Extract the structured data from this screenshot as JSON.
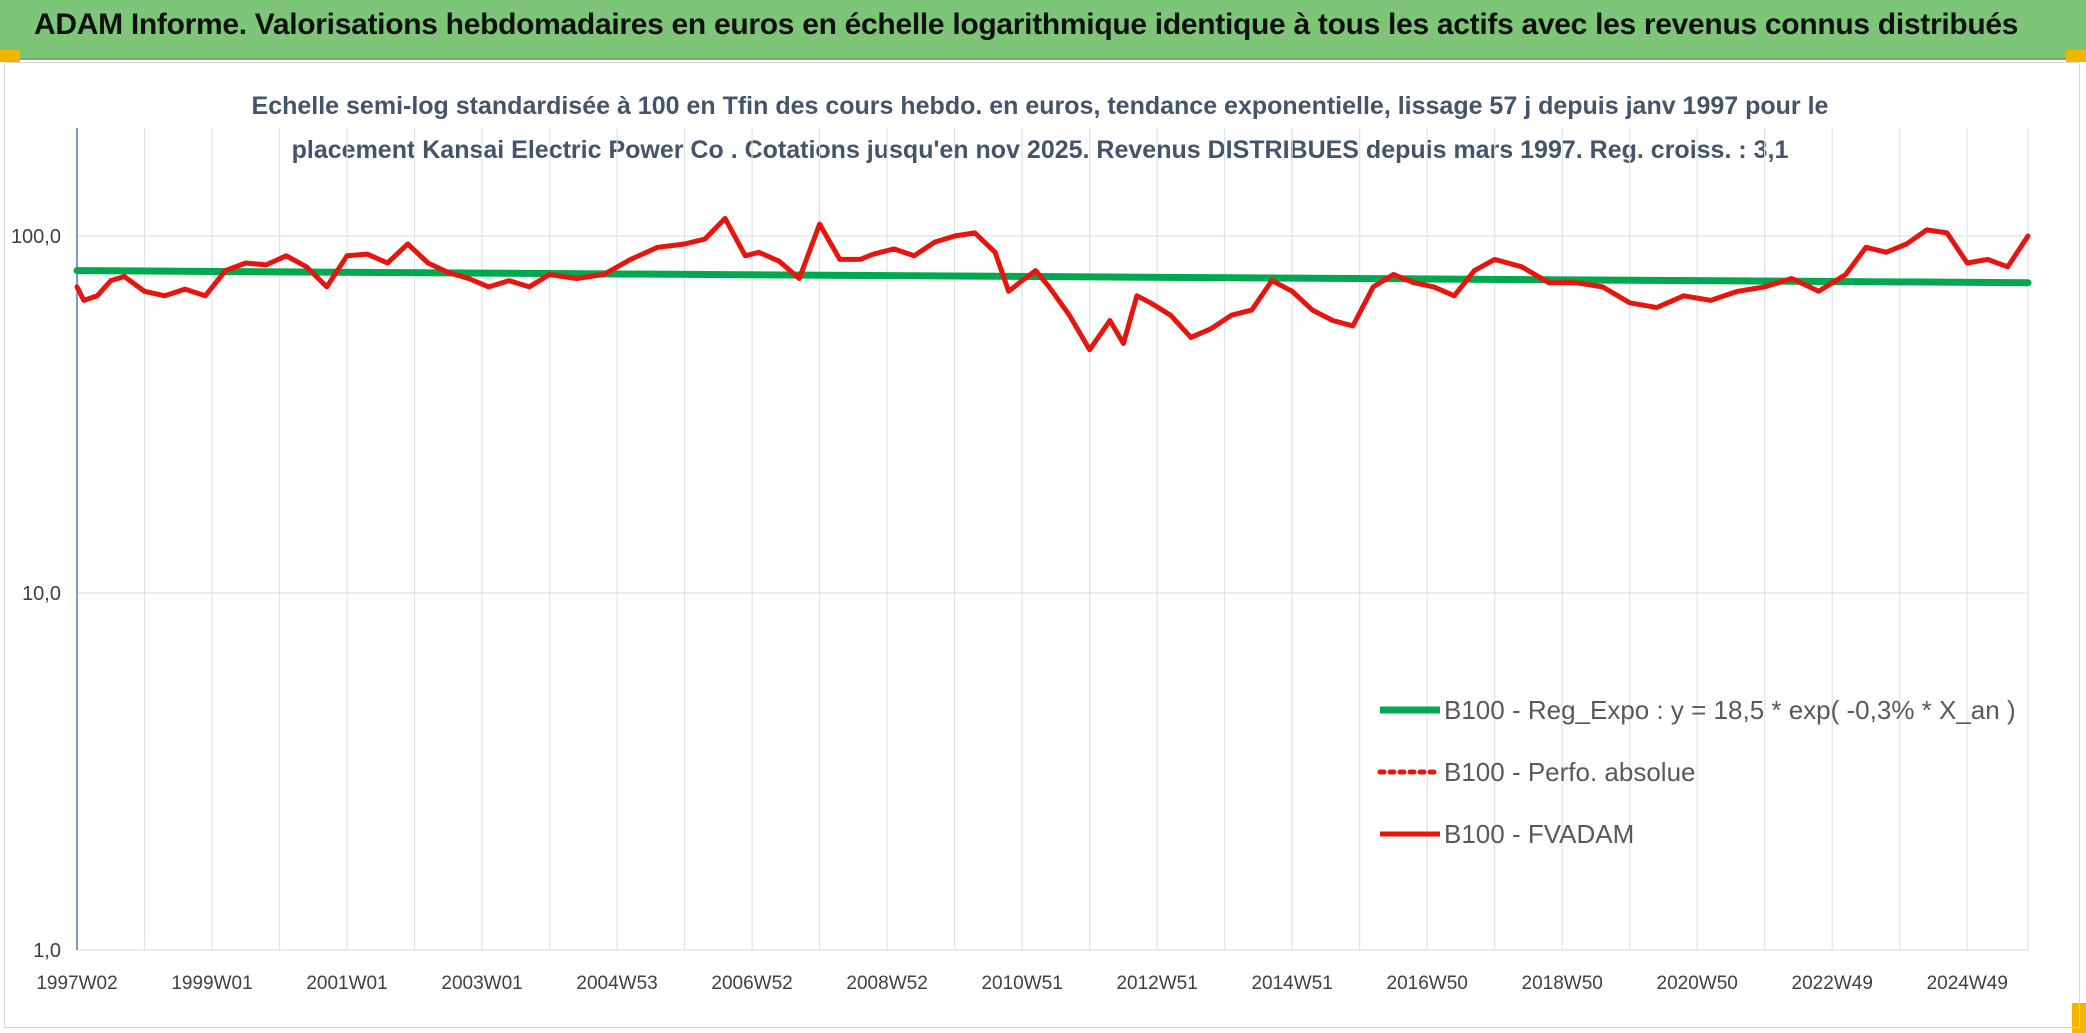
{
  "header": {
    "title": "ADAM Informe. Valorisations hebdomadaires en euros en échelle logarithmique identique à tous les actifs avec les revenus connus distribués"
  },
  "colors": {
    "header_bg": "#7dc678",
    "corner_accent": "#f2b600",
    "trend": "#00a84f",
    "fvadam": "#e8140e",
    "grid": "#dde3ea",
    "y_axis": "#4a7ec0"
  },
  "chart_data": {
    "type": "line",
    "title_lines": [
      "Echelle semi-log standardisée à 100 en Tfin des cours hebdo. en euros, tendance exponentielle, lissage 57 j depuis janv 1997 pour le",
      "placement Kansai Electric Power Co . Cotations jusqu'en nov 2025. Revenus DISTRIBUES depuis mars 1997. Reg. croiss. : 3,1"
    ],
    "y_scale": "log",
    "ylim": [
      1,
      200
    ],
    "y_ticks": [
      {
        "value": 1,
        "label": "1,0"
      },
      {
        "value": 10,
        "label": "10,0"
      },
      {
        "value": 100,
        "label": "100,0"
      }
    ],
    "xlim": [
      1997.0,
      2025.9
    ],
    "x_ticks": [
      {
        "value": 1997.0,
        "label": "1997W02"
      },
      {
        "value": 1999.0,
        "label": "1999W01"
      },
      {
        "value": 2001.0,
        "label": "2001W01"
      },
      {
        "value": 2003.0,
        "label": "2003W01"
      },
      {
        "value": 2005.0,
        "label": "2004W53"
      },
      {
        "value": 2007.0,
        "label": "2006W52"
      },
      {
        "value": 2009.0,
        "label": "2008W52"
      },
      {
        "value": 2011.0,
        "label": "2010W51"
      },
      {
        "value": 2013.0,
        "label": "2012W51"
      },
      {
        "value": 2015.0,
        "label": "2014W51"
      },
      {
        "value": 2017.0,
        "label": "2016W50"
      },
      {
        "value": 2019.0,
        "label": "2018W50"
      },
      {
        "value": 2021.0,
        "label": "2020W50"
      },
      {
        "value": 2023.0,
        "label": "2022W49"
      },
      {
        "value": 2025.0,
        "label": "2024W49"
      }
    ],
    "x_grid_values": [
      1997.0,
      1998.0,
      1999.0,
      2000.0,
      2001.0,
      2002.0,
      2003.0,
      2004.0,
      2005.0,
      2006.0,
      2007.0,
      2008.0,
      2009.0,
      2010.0,
      2011.0,
      2012.0,
      2013.0,
      2014.0,
      2015.0,
      2016.0,
      2017.0,
      2018.0,
      2019.0,
      2020.0,
      2021.0,
      2022.0,
      2023.0,
      2024.0,
      2025.0,
      2025.9
    ],
    "legend": {
      "placement": "right-lower-middle",
      "entries": [
        {
          "label": "B100 - Reg_Expo : y = 18,5 * exp( -0,3% *  X_an )",
          "color": "#00a84f",
          "style": "solid-thick"
        },
        {
          "label": "B100 - Perfo. absolue",
          "color": "#e8140e",
          "style": "dotted"
        },
        {
          "label": "B100 - FVADAM",
          "color": "#e8140e",
          "style": "solid"
        }
      ]
    },
    "series": [
      {
        "name": "B100 - Reg_Expo : y = 18,5 * exp( -0,3% *  X_an )",
        "color": "#00a84f",
        "x": [
          1997.0,
          2025.9
        ],
        "y": [
          80,
          74
        ]
      },
      {
        "name": "B100 - FVADAM",
        "color": "#e8140e",
        "x": [
          1997.0,
          1997.1,
          1997.3,
          1997.5,
          1997.7,
          1998.0,
          1998.3,
          1998.6,
          1998.9,
          1999.2,
          1999.5,
          1999.8,
          2000.1,
          2000.4,
          2000.7,
          2001.0,
          2001.3,
          2001.6,
          2001.9,
          2002.2,
          2002.5,
          2002.8,
          2003.1,
          2003.4,
          2003.7,
          2004.0,
          2004.4,
          2004.8,
          2005.2,
          2005.6,
          2006.0,
          2006.3,
          2006.6,
          2006.9,
          2007.1,
          2007.4,
          2007.7,
          2008.0,
          2008.3,
          2008.6,
          2008.8,
          2009.1,
          2009.4,
          2009.7,
          2010.0,
          2010.3,
          2010.6,
          2010.8,
          2011.0,
          2011.2,
          2011.4,
          2011.7,
          2012.0,
          2012.3,
          2012.5,
          2012.7,
          2012.9,
          2013.2,
          2013.5,
          2013.8,
          2014.1,
          2014.4,
          2014.7,
          2015.0,
          2015.3,
          2015.6,
          2015.9,
          2016.2,
          2016.5,
          2016.8,
          2017.1,
          2017.4,
          2017.7,
          2018.0,
          2018.4,
          2018.8,
          2019.2,
          2019.6,
          2020.0,
          2020.4,
          2020.8,
          2021.2,
          2021.6,
          2022.0,
          2022.4,
          2022.8,
          2023.2,
          2023.5,
          2023.8,
          2024.1,
          2024.4,
          2024.7,
          2025.0,
          2025.3,
          2025.6,
          2025.9
        ],
        "y": [
          72,
          66,
          68,
          75,
          77,
          70,
          68,
          71,
          68,
          80,
          84,
          83,
          88,
          82,
          72,
          88,
          89,
          84,
          95,
          84,
          79,
          76,
          72,
          75,
          72,
          78,
          76,
          78,
          86,
          93,
          95,
          98,
          112,
          88,
          90,
          85,
          76,
          108,
          86,
          86,
          89,
          92,
          88,
          96,
          100,
          102,
          90,
          70,
          75,
          80,
          72,
          60,
          48,
          58,
          50,
          68,
          65,
          60,
          52,
          55,
          60,
          62,
          75,
          70,
          62,
          58,
          56,
          72,
          78,
          74,
          72,
          68,
          80,
          86,
          82,
          74,
          74,
          72,
          65,
          63,
          68,
          66,
          70,
          72,
          76,
          70,
          78,
          93,
          90,
          95,
          104,
          102,
          84,
          86,
          82,
          100
        ]
      }
    ]
  }
}
